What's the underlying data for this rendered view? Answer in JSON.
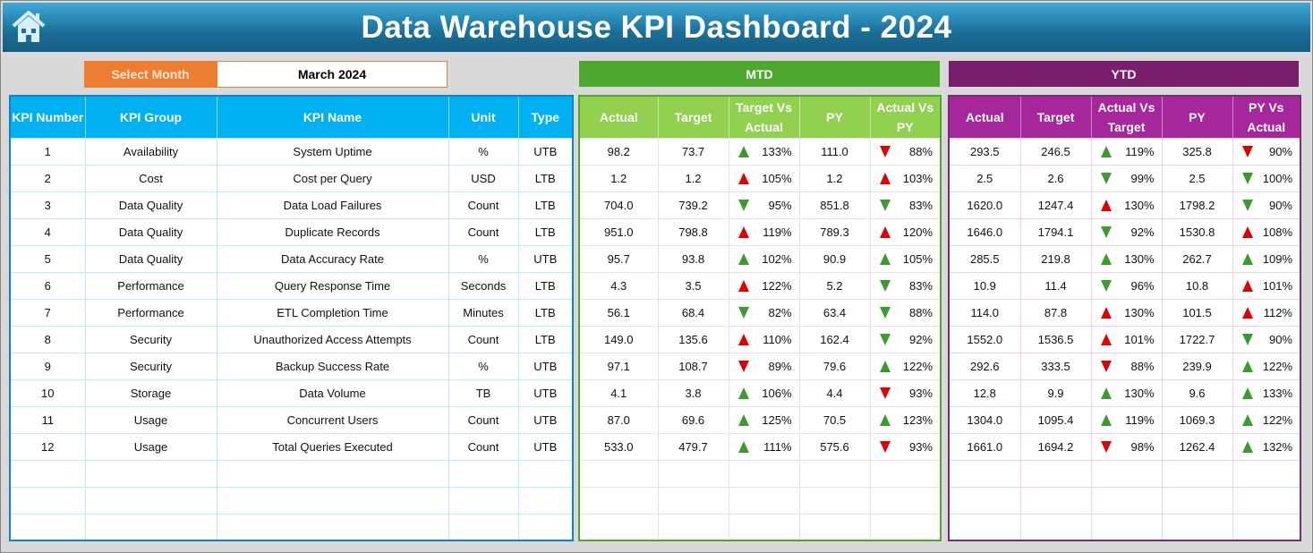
{
  "title": "Data Warehouse KPI Dashboard - 2024",
  "select_month": {
    "label": "Select Month",
    "value": "March 2024"
  },
  "colors": {
    "up_good": "#3c9a2e",
    "bad": "#e00000"
  },
  "mtd": {
    "label": "MTD",
    "headers": [
      "Actual",
      "Target",
      "Target Vs Actual",
      "PY",
      "Actual Vs PY"
    ]
  },
  "ytd": {
    "label": "YTD",
    "headers": [
      "Actual",
      "Target",
      "Actual Vs Target",
      "PY",
      "PY Vs Actual"
    ]
  },
  "kpi_headers": [
    "KPI Number",
    "KPI Group",
    "KPI Name",
    "Unit",
    "Type"
  ],
  "rows": [
    {
      "num": "1",
      "group": "Availability",
      "name": "System Uptime",
      "unit": "%",
      "type": "UTB",
      "mtd": {
        "actual": "98.2",
        "target": "73.7",
        "tva": {
          "dir": "up",
          "status": "good",
          "pct": "133%"
        },
        "py": "111.0",
        "avpy": {
          "dir": "down",
          "status": "bad",
          "pct": "88%"
        }
      },
      "ytd": {
        "actual": "293.5",
        "target": "246.5",
        "avt": {
          "dir": "up",
          "status": "good",
          "pct": "119%"
        },
        "py": "325.8",
        "pyva": {
          "dir": "down",
          "status": "bad",
          "pct": "90%"
        }
      }
    },
    {
      "num": "2",
      "group": "Cost",
      "name": "Cost per Query",
      "unit": "USD",
      "type": "LTB",
      "mtd": {
        "actual": "1.2",
        "target": "1.2",
        "tva": {
          "dir": "up",
          "status": "bad",
          "pct": "105%"
        },
        "py": "1.2",
        "avpy": {
          "dir": "up",
          "status": "bad",
          "pct": "103%"
        }
      },
      "ytd": {
        "actual": "2.5",
        "target": "2.6",
        "avt": {
          "dir": "down",
          "status": "good",
          "pct": "99%"
        },
        "py": "2.5",
        "pyva": {
          "dir": "down",
          "status": "good",
          "pct": "100%"
        }
      }
    },
    {
      "num": "3",
      "group": "Data Quality",
      "name": "Data Load Failures",
      "unit": "Count",
      "type": "LTB",
      "mtd": {
        "actual": "704.0",
        "target": "739.2",
        "tva": {
          "dir": "down",
          "status": "good",
          "pct": "95%"
        },
        "py": "851.8",
        "avpy": {
          "dir": "down",
          "status": "good",
          "pct": "83%"
        }
      },
      "ytd": {
        "actual": "1620.0",
        "target": "1247.4",
        "avt": {
          "dir": "up",
          "status": "bad",
          "pct": "130%"
        },
        "py": "1798.2",
        "pyva": {
          "dir": "down",
          "status": "good",
          "pct": "90%"
        }
      }
    },
    {
      "num": "4",
      "group": "Data Quality",
      "name": "Duplicate Records",
      "unit": "Count",
      "type": "LTB",
      "mtd": {
        "actual": "951.0",
        "target": "798.8",
        "tva": {
          "dir": "up",
          "status": "bad",
          "pct": "119%"
        },
        "py": "789.3",
        "avpy": {
          "dir": "up",
          "status": "bad",
          "pct": "120%"
        }
      },
      "ytd": {
        "actual": "1646.0",
        "target": "1794.1",
        "avt": {
          "dir": "down",
          "status": "good",
          "pct": "92%"
        },
        "py": "1530.8",
        "pyva": {
          "dir": "up",
          "status": "bad",
          "pct": "108%"
        }
      }
    },
    {
      "num": "5",
      "group": "Data Quality",
      "name": "Data Accuracy Rate",
      "unit": "%",
      "type": "UTB",
      "mtd": {
        "actual": "95.7",
        "target": "93.8",
        "tva": {
          "dir": "up",
          "status": "good",
          "pct": "102%"
        },
        "py": "90.9",
        "avpy": {
          "dir": "up",
          "status": "good",
          "pct": "105%"
        }
      },
      "ytd": {
        "actual": "285.5",
        "target": "219.8",
        "avt": {
          "dir": "up",
          "status": "good",
          "pct": "130%"
        },
        "py": "262.7",
        "pyva": {
          "dir": "up",
          "status": "good",
          "pct": "109%"
        }
      }
    },
    {
      "num": "6",
      "group": "Performance",
      "name": "Query Response Time",
      "unit": "Seconds",
      "type": "LTB",
      "mtd": {
        "actual": "4.3",
        "target": "3.5",
        "tva": {
          "dir": "up",
          "status": "bad",
          "pct": "122%"
        },
        "py": "5.2",
        "avpy": {
          "dir": "down",
          "status": "good",
          "pct": "83%"
        }
      },
      "ytd": {
        "actual": "10.9",
        "target": "11.4",
        "avt": {
          "dir": "down",
          "status": "good",
          "pct": "96%"
        },
        "py": "10.8",
        "pyva": {
          "dir": "up",
          "status": "bad",
          "pct": "101%"
        }
      }
    },
    {
      "num": "7",
      "group": "Performance",
      "name": "ETL Completion Time",
      "unit": "Minutes",
      "type": "LTB",
      "mtd": {
        "actual": "56.1",
        "target": "68.4",
        "tva": {
          "dir": "down",
          "status": "good",
          "pct": "82%"
        },
        "py": "63.4",
        "avpy": {
          "dir": "down",
          "status": "good",
          "pct": "88%"
        }
      },
      "ytd": {
        "actual": "114.0",
        "target": "87.8",
        "avt": {
          "dir": "up",
          "status": "bad",
          "pct": "130%"
        },
        "py": "101.5",
        "pyva": {
          "dir": "up",
          "status": "bad",
          "pct": "112%"
        }
      }
    },
    {
      "num": "8",
      "group": "Security",
      "name": "Unauthorized Access Attempts",
      "unit": "Count",
      "type": "LTB",
      "mtd": {
        "actual": "149.0",
        "target": "135.6",
        "tva": {
          "dir": "up",
          "status": "bad",
          "pct": "110%"
        },
        "py": "162.4",
        "avpy": {
          "dir": "down",
          "status": "good",
          "pct": "92%"
        }
      },
      "ytd": {
        "actual": "1552.0",
        "target": "1536.5",
        "avt": {
          "dir": "up",
          "status": "bad",
          "pct": "101%"
        },
        "py": "1722.7",
        "pyva": {
          "dir": "down",
          "status": "good",
          "pct": "90%"
        }
      }
    },
    {
      "num": "9",
      "group": "Security",
      "name": "Backup Success Rate",
      "unit": "%",
      "type": "UTB",
      "mtd": {
        "actual": "97.1",
        "target": "108.7",
        "tva": {
          "dir": "down",
          "status": "bad",
          "pct": "89%"
        },
        "py": "79.6",
        "avpy": {
          "dir": "up",
          "status": "good",
          "pct": "122%"
        }
      },
      "ytd": {
        "actual": "292.6",
        "target": "333.5",
        "avt": {
          "dir": "down",
          "status": "bad",
          "pct": "88%"
        },
        "py": "239.9",
        "pyva": {
          "dir": "up",
          "status": "good",
          "pct": "122%"
        }
      }
    },
    {
      "num": "10",
      "group": "Storage",
      "name": "Data Volume",
      "unit": "TB",
      "type": "UTB",
      "mtd": {
        "actual": "4.1",
        "target": "3.8",
        "tva": {
          "dir": "up",
          "status": "good",
          "pct": "106%"
        },
        "py": "4.4",
        "avpy": {
          "dir": "down",
          "status": "bad",
          "pct": "93%"
        }
      },
      "ytd": {
        "actual": "12.8",
        "target": "9.9",
        "avt": {
          "dir": "up",
          "status": "good",
          "pct": "130%"
        },
        "py": "9.6",
        "pyva": {
          "dir": "up",
          "status": "good",
          "pct": "133%"
        }
      }
    },
    {
      "num": "11",
      "group": "Usage",
      "name": "Concurrent Users",
      "unit": "Count",
      "type": "UTB",
      "mtd": {
        "actual": "87.0",
        "target": "69.6",
        "tva": {
          "dir": "up",
          "status": "good",
          "pct": "125%"
        },
        "py": "70.5",
        "avpy": {
          "dir": "up",
          "status": "good",
          "pct": "123%"
        }
      },
      "ytd": {
        "actual": "1304.0",
        "target": "1095.4",
        "avt": {
          "dir": "up",
          "status": "good",
          "pct": "119%"
        },
        "py": "1069.3",
        "pyva": {
          "dir": "up",
          "status": "good",
          "pct": "122%"
        }
      }
    },
    {
      "num": "12",
      "group": "Usage",
      "name": "Total Queries Executed",
      "unit": "Count",
      "type": "UTB",
      "mtd": {
        "actual": "533.0",
        "target": "479.7",
        "tva": {
          "dir": "up",
          "status": "good",
          "pct": "111%"
        },
        "py": "575.6",
        "avpy": {
          "dir": "down",
          "status": "bad",
          "pct": "93%"
        }
      },
      "ytd": {
        "actual": "1661.0",
        "target": "1694.2",
        "avt": {
          "dir": "down",
          "status": "bad",
          "pct": "98%"
        },
        "py": "1262.4",
        "pyva": {
          "dir": "up",
          "status": "good",
          "pct": "132%"
        }
      }
    }
  ]
}
